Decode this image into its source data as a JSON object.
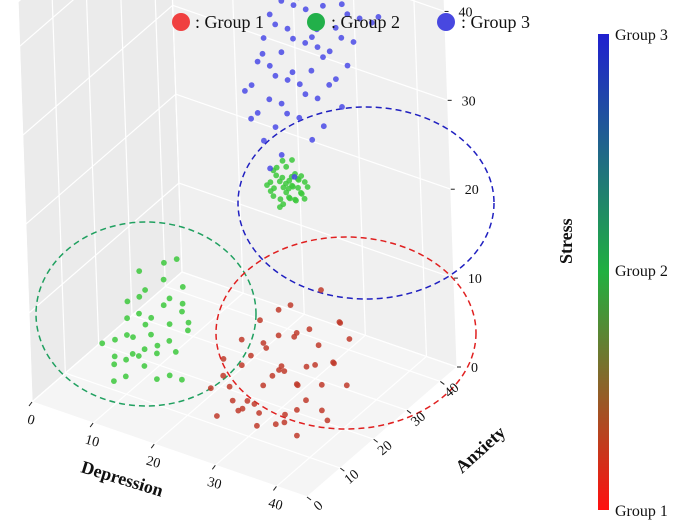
{
  "legend": [
    {
      "label": ": Group 1",
      "color": "#f04040"
    },
    {
      "label": ": Group 2",
      "color": "#22b04a"
    },
    {
      "label": ": Group 3",
      "color": "#4848e0"
    }
  ],
  "colorbar": {
    "labels": [
      "Group 3",
      "Group 2",
      "Group 1"
    ],
    "colors": [
      "#2020d0",
      "#20b040",
      "#ff1010"
    ]
  },
  "chart_data": {
    "type": "scatter",
    "projection": "3d",
    "xlabel": "Depression",
    "ylabel": "Anxiety",
    "zlabel": "Stress",
    "xlim": [
      0,
      45
    ],
    "ylim": [
      0,
      45
    ],
    "zlim": [
      0,
      45
    ],
    "xticks": [
      0,
      10,
      20,
      30,
      40
    ],
    "yticks": [
      0,
      10,
      20,
      30,
      40
    ],
    "zticks": [
      0,
      10,
      20,
      30,
      40
    ],
    "grid": true,
    "legend_position": "top",
    "series": [
      {
        "name": "Group 1",
        "color": "#c03a2a",
        "ellipse_color": "#e02020",
        "points": [
          [
            28,
            12,
            2
          ],
          [
            30,
            10,
            4
          ],
          [
            32,
            14,
            6
          ],
          [
            35,
            12,
            3
          ],
          [
            38,
            16,
            8
          ],
          [
            26,
            8,
            2
          ],
          [
            34,
            18,
            10
          ],
          [
            36,
            14,
            6
          ],
          [
            40,
            20,
            12
          ],
          [
            30,
            16,
            8
          ],
          [
            24,
            10,
            4
          ],
          [
            42,
            18,
            6
          ],
          [
            38,
            10,
            2
          ],
          [
            33,
            8,
            4
          ],
          [
            36,
            22,
            14
          ],
          [
            28,
            18,
            10
          ],
          [
            32,
            20,
            12
          ],
          [
            40,
            14,
            4
          ],
          [
            27,
            14,
            6
          ],
          [
            35,
            16,
            5
          ],
          [
            30,
            12,
            3
          ],
          [
            37,
            19,
            9
          ],
          [
            25,
            12,
            5
          ],
          [
            33,
            15,
            7
          ],
          [
            41,
            16,
            9
          ],
          [
            29,
            9,
            3
          ],
          [
            34,
            11,
            2
          ],
          [
            38,
            13,
            5
          ],
          [
            31,
            18,
            9
          ],
          [
            36,
            17,
            7
          ],
          [
            26,
            16,
            8
          ],
          [
            39,
            22,
            11
          ],
          [
            42,
            12,
            4
          ],
          [
            30,
            20,
            11
          ],
          [
            32,
            9,
            2
          ],
          [
            27,
            11,
            3
          ],
          [
            35,
            20,
            10
          ],
          [
            40,
            18,
            8
          ],
          [
            28,
            15,
            7
          ],
          [
            33,
            19,
            9
          ],
          [
            37,
            12,
            4
          ],
          [
            24,
            14,
            6
          ],
          [
            31,
            13,
            5
          ],
          [
            36,
            10,
            3
          ],
          [
            39,
            16,
            6
          ],
          [
            29,
            17,
            8
          ],
          [
            34,
            14,
            7
          ],
          [
            41,
            21,
            10
          ],
          [
            26,
            12,
            4
          ],
          [
            32,
            16,
            6
          ]
        ]
      },
      {
        "name": "Group 2",
        "color": "#3cc83c",
        "ellipse_color": "#20a060",
        "points": [
          [
            8,
            16,
            4
          ],
          [
            10,
            18,
            6
          ],
          [
            6,
            14,
            2
          ],
          [
            12,
            20,
            8
          ],
          [
            9,
            12,
            3
          ],
          [
            14,
            16,
            5
          ],
          [
            7,
            20,
            7
          ],
          [
            11,
            14,
            4
          ],
          [
            13,
            18,
            6
          ],
          [
            5,
            16,
            3
          ],
          [
            10,
            22,
            9
          ],
          [
            15,
            14,
            2
          ],
          [
            8,
            10,
            1
          ],
          [
            12,
            12,
            3
          ],
          [
            6,
            18,
            5
          ],
          [
            9,
            24,
            10
          ],
          [
            14,
            20,
            7
          ],
          [
            11,
            16,
            5
          ],
          [
            7,
            12,
            2
          ],
          [
            13,
            14,
            4
          ],
          [
            10,
            14,
            3
          ],
          [
            16,
            18,
            6
          ],
          [
            8,
            20,
            8
          ],
          [
            12,
            16,
            4
          ],
          [
            6,
            22,
            9
          ],
          [
            15,
            20,
            6
          ],
          [
            9,
            18,
            5
          ],
          [
            11,
            20,
            7
          ],
          [
            14,
            12,
            2
          ],
          [
            10,
            10,
            2
          ],
          [
            4,
            14,
            3
          ],
          [
            12,
            24,
            8
          ],
          [
            8,
            18,
            6
          ],
          [
            13,
            22,
            7
          ],
          [
            7,
            16,
            4
          ],
          [
            17,
            14,
            2
          ],
          [
            10,
            26,
            10
          ],
          [
            5,
            20,
            6
          ],
          [
            9,
            14,
            3
          ],
          [
            15,
            16,
            4
          ],
          [
            18,
            40,
            15
          ],
          [
            19,
            41,
            16
          ],
          [
            20,
            40,
            14
          ],
          [
            21,
            42,
            17
          ],
          [
            19,
            39,
            15
          ],
          [
            20,
            41,
            16
          ],
          [
            22,
            42,
            15
          ],
          [
            18,
            42,
            17
          ],
          [
            21,
            40,
            15
          ],
          [
            20,
            43,
            18
          ],
          [
            19,
            40,
            17
          ],
          [
            22,
            41,
            16
          ],
          [
            18,
            41,
            15
          ],
          [
            21,
            43,
            16
          ],
          [
            20,
            39,
            14
          ],
          [
            23,
            42,
            16
          ],
          [
            19,
            42,
            18
          ],
          [
            20,
            42,
            16
          ],
          [
            21,
            41,
            17
          ],
          [
            22,
            40,
            15
          ],
          [
            18,
            40,
            16
          ],
          [
            19,
            43,
            17
          ],
          [
            20,
            40,
            17
          ],
          [
            21,
            42,
            14
          ],
          [
            22,
            43,
            16
          ],
          [
            23,
            41,
            15
          ],
          [
            19,
            41,
            14
          ],
          [
            20,
            43,
            15
          ],
          [
            18,
            39,
            16
          ],
          [
            21,
            41,
            16
          ],
          [
            20,
            41,
            15
          ],
          [
            22,
            42,
            17
          ],
          [
            19,
            42,
            15
          ],
          [
            21,
            40,
            16
          ],
          [
            20,
            42,
            14
          ],
          [
            22,
            41,
            17
          ],
          [
            18,
            41,
            17
          ],
          [
            23,
            40,
            16
          ]
        ]
      },
      {
        "name": "Group 3",
        "color": "#4a4ae6",
        "ellipse_color": "#2020c0",
        "points": [
          [
            20,
            30,
            30
          ],
          [
            24,
            34,
            34
          ],
          [
            28,
            36,
            36
          ],
          [
            32,
            38,
            40
          ],
          [
            26,
            32,
            32
          ],
          [
            30,
            34,
            38
          ],
          [
            22,
            28,
            28
          ],
          [
            34,
            40,
            42
          ],
          [
            36,
            36,
            40
          ],
          [
            28,
            30,
            34
          ],
          [
            24,
            38,
            38
          ],
          [
            32,
            32,
            36
          ],
          [
            26,
            36,
            40
          ],
          [
            30,
            40,
            44
          ],
          [
            20,
            34,
            32
          ],
          [
            22,
            36,
            36
          ],
          [
            34,
            34,
            38
          ],
          [
            28,
            28,
            30
          ],
          [
            36,
            38,
            42
          ],
          [
            24,
            30,
            30
          ],
          [
            30,
            36,
            40
          ],
          [
            26,
            40,
            42
          ],
          [
            32,
            36,
            38
          ],
          [
            22,
            32,
            34
          ],
          [
            28,
            38,
            40
          ],
          [
            34,
            30,
            34
          ],
          [
            20,
            36,
            34
          ],
          [
            30,
            30,
            32
          ],
          [
            26,
            34,
            36
          ],
          [
            36,
            40,
            44
          ],
          [
            24,
            36,
            36
          ],
          [
            32,
            40,
            42
          ],
          [
            28,
            34,
            36
          ],
          [
            22,
            38,
            38
          ],
          [
            34,
            36,
            40
          ],
          [
            30,
            32,
            34
          ],
          [
            26,
            30,
            30
          ],
          [
            36,
            34,
            38
          ],
          [
            20,
            32,
            30
          ],
          [
            28,
            40,
            42
          ],
          [
            24,
            40,
            40
          ],
          [
            32,
            34,
            36
          ],
          [
            38,
            38,
            40
          ],
          [
            22,
            30,
            28
          ],
          [
            30,
            38,
            42
          ],
          [
            26,
            38,
            38
          ],
          [
            34,
            38,
            42
          ],
          [
            28,
            32,
            32
          ],
          [
            36,
            32,
            36
          ],
          [
            24,
            32,
            32
          ],
          [
            32,
            30,
            32
          ],
          [
            20,
            38,
            36
          ],
          [
            30,
            34,
            36
          ],
          [
            26,
            28,
            28
          ],
          [
            34,
            32,
            34
          ],
          [
            38,
            36,
            40
          ],
          [
            22,
            34,
            32
          ],
          [
            28,
            36,
            38
          ],
          [
            30,
            28,
            30
          ],
          [
            24,
            28,
            26
          ],
          [
            36,
            30,
            32
          ],
          [
            32,
            28,
            28
          ],
          [
            26,
            26,
            24
          ],
          [
            34,
            28,
            30
          ],
          [
            28,
            26,
            26
          ],
          [
            30,
            26,
            24
          ]
        ]
      }
    ]
  }
}
